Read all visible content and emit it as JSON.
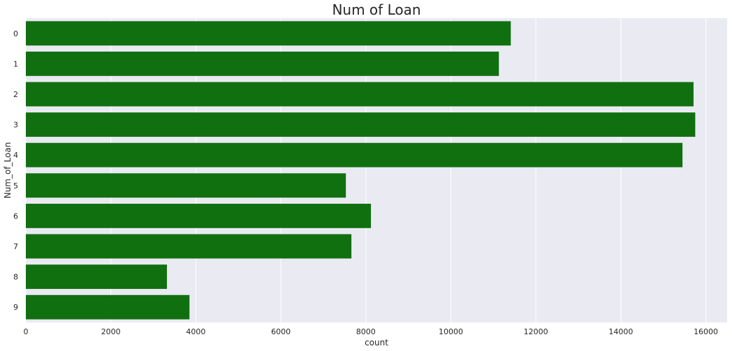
{
  "chart_data": {
    "type": "bar",
    "orientation": "horizontal",
    "title": "Num of Loan",
    "xlabel": "count",
    "ylabel": "Num_of_Loan",
    "categories": [
      "0",
      "1",
      "2",
      "3",
      "4",
      "5",
      "6",
      "7",
      "8",
      "9"
    ],
    "values": [
      11410,
      11130,
      15710,
      15750,
      15450,
      7530,
      8120,
      7660,
      3320,
      3850
    ],
    "xlim": [
      0,
      16500
    ],
    "xticks": [
      0,
      2000,
      4000,
      6000,
      8000,
      10000,
      12000,
      14000,
      16000
    ],
    "bar_color": "#107010",
    "background_color": "#eaeaf2",
    "grid": true
  }
}
